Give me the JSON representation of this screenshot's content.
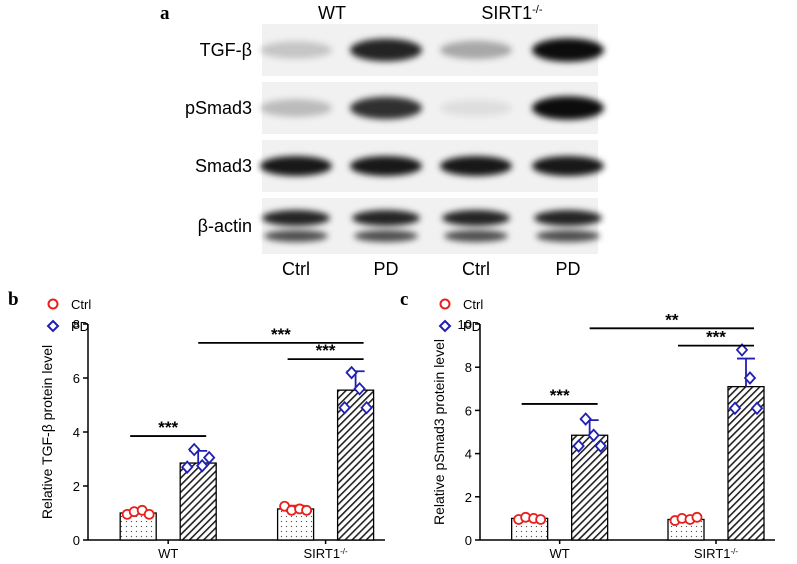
{
  "panel_a": {
    "letter": "a",
    "groups": [
      {
        "label": "WT"
      },
      {
        "label": "SIRT1",
        "sup": "-/-"
      }
    ],
    "rows": [
      "TGF-β",
      "pSmad3",
      "Smad3",
      "β-actin"
    ],
    "lanes": [
      "Ctrl",
      "PD",
      "Ctrl",
      "PD"
    ],
    "band_intensity": [
      [
        0.18,
        0.85,
        0.3,
        0.95
      ],
      [
        0.22,
        0.8,
        0.08,
        0.95
      ],
      [
        0.9,
        0.9,
        0.9,
        0.9
      ],
      [
        0.85,
        0.85,
        0.85,
        0.85
      ]
    ]
  },
  "chart_data": [
    {
      "type": "bar",
      "panel": "b",
      "ylabel": "Relative TGF-β protein level",
      "categories": [
        {
          "label": "WT"
        },
        {
          "label": "SIRT1",
          "sup": "-/-"
        }
      ],
      "ylim": [
        0,
        8
      ],
      "yticks": [
        0,
        2,
        4,
        6,
        8
      ],
      "series": [
        {
          "name": "Ctrl",
          "marker": "circle",
          "color": "#e8201c",
          "fill": "dots",
          "values": [
            1.0,
            1.15
          ],
          "errors": [
            0.1,
            0.12
          ],
          "points": [
            [
              0.95,
              1.05,
              1.1,
              0.95
            ],
            [
              1.25,
              1.1,
              1.15,
              1.1
            ]
          ]
        },
        {
          "name": "PD",
          "marker": "diamond",
          "color": "#1f1fb4",
          "fill": "hatch",
          "values": [
            2.85,
            5.55
          ],
          "errors": [
            0.45,
            0.7
          ],
          "points": [
            [
              2.7,
              3.35,
              2.75,
              3.05
            ],
            [
              4.9,
              6.2,
              5.6,
              4.9
            ]
          ]
        }
      ],
      "significance": [
        {
          "label": "***",
          "from": [
            0,
            0
          ],
          "to": [
            0,
            1
          ],
          "y": 3.85
        },
        {
          "label": "***",
          "from": [
            1,
            0
          ],
          "to": [
            1,
            1
          ],
          "y": 6.7
        },
        {
          "label": "***",
          "from": [
            0,
            1
          ],
          "to": [
            1,
            1
          ],
          "y": 7.3
        }
      ]
    },
    {
      "type": "bar",
      "panel": "c",
      "ylabel": "Relative pSmad3 protein level",
      "categories": [
        {
          "label": "WT"
        },
        {
          "label": "SIRT1",
          "sup": "-/-"
        }
      ],
      "ylim": [
        0,
        10
      ],
      "yticks": [
        0,
        2,
        4,
        6,
        8,
        10
      ],
      "series": [
        {
          "name": "Ctrl",
          "marker": "circle",
          "color": "#e8201c",
          "fill": "dots",
          "values": [
            1.0,
            0.95
          ],
          "errors": [
            0.1,
            0.12
          ],
          "points": [
            [
              0.95,
              1.05,
              1.0,
              0.95
            ],
            [
              0.9,
              1.0,
              0.95,
              1.05
            ]
          ]
        },
        {
          "name": "PD",
          "marker": "diamond",
          "color": "#1f1fb4",
          "fill": "hatch",
          "values": [
            4.85,
            7.1
          ],
          "errors": [
            0.7,
            1.3
          ],
          "points": [
            [
              4.35,
              5.6,
              4.85,
              4.35
            ],
            [
              6.1,
              8.8,
              7.5,
              6.1
            ]
          ]
        }
      ],
      "significance": [
        {
          "label": "***",
          "from": [
            0,
            0
          ],
          "to": [
            0,
            1
          ],
          "y": 6.3
        },
        {
          "label": "***",
          "from": [
            1,
            0
          ],
          "to": [
            1,
            1
          ],
          "y": 9.0
        },
        {
          "label": "**",
          "from": [
            0,
            1
          ],
          "to": [
            1,
            1
          ],
          "y": 9.8
        }
      ]
    }
  ],
  "panel_b_letter": "b",
  "panel_c_letter": "c"
}
